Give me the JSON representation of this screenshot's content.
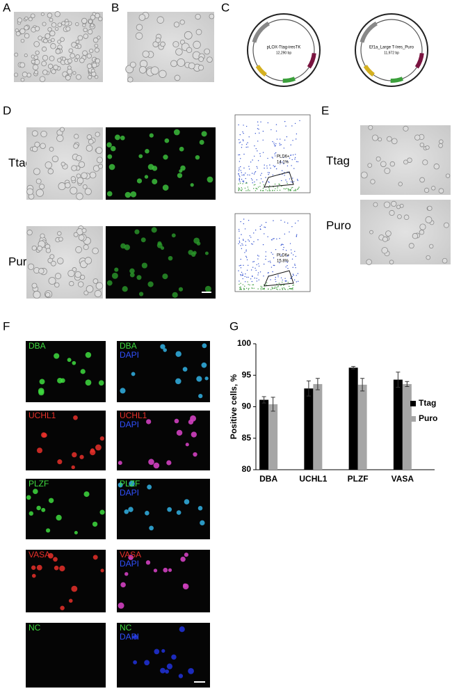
{
  "panels": {
    "A": "A",
    "B": "B",
    "C": "C",
    "D": "D",
    "E": "E",
    "F": "F",
    "G": "G"
  },
  "plasmids": [
    {
      "name": "pLOX-Ttag-iresTK",
      "size": "12,290 bp"
    },
    {
      "name": "Ef1a_Large T-Ires_Puro",
      "size": "11,972 bp"
    }
  ],
  "D": {
    "rows": [
      {
        "label": "Ttag",
        "gate": "PLD6+",
        "percent": "14.1%"
      },
      {
        "label": "Puro",
        "gate": "PLD6+",
        "percent": "15.8%"
      }
    ]
  },
  "E": {
    "rows": [
      "Ttag",
      "Puro"
    ]
  },
  "F": {
    "counterstain": "DAPI",
    "rows": [
      {
        "marker": "DBA",
        "color": "#3fdc3f"
      },
      {
        "marker": "UCHL1",
        "color": "#e8302a"
      },
      {
        "marker": "PLZF",
        "color": "#3fdc3f"
      },
      {
        "marker": "VASA",
        "color": "#e8302a"
      },
      {
        "marker": "NC",
        "color": "#3fdc3f"
      }
    ]
  },
  "chart_data": {
    "type": "bar",
    "ylabel": "Positive cells, %",
    "categories": [
      "DBA",
      "UCHL1",
      "PLZF",
      "VASA"
    ],
    "series": [
      {
        "name": "Ttag",
        "color": "#000000",
        "values": [
          91.1,
          92.9,
          96.2,
          94.3
        ],
        "errors": [
          0.5,
          1.2,
          0.2,
          1.2
        ]
      },
      {
        "name": "Puro",
        "color": "#a6a6a6",
        "values": [
          90.4,
          93.6,
          93.5,
          93.6
        ],
        "errors": [
          1.1,
          0.9,
          1.0,
          0.4
        ]
      }
    ],
    "ylim": [
      80,
      100
    ],
    "yticks": [
      80,
      85,
      90,
      95,
      100
    ],
    "legend": "right"
  }
}
